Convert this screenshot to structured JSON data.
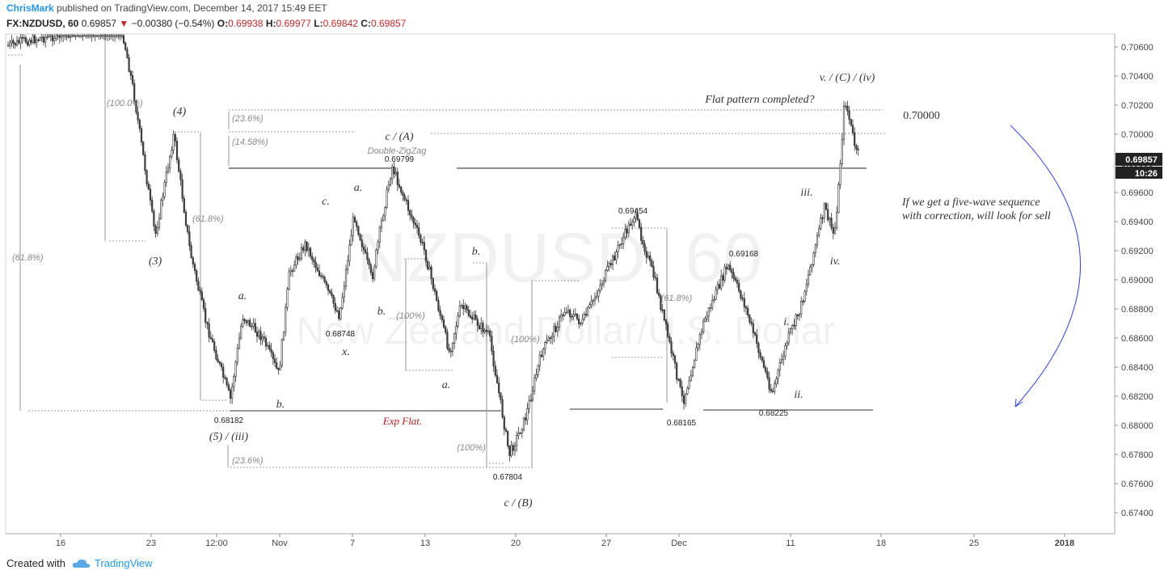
{
  "header": {
    "author": "ChrisMark",
    "published_text": " published on TradingView.com, December 14, 2017 15:49 EET",
    "symbol": "FX:NZDUSD, 60",
    "last": "0.69857",
    "arrow": "▼",
    "change": "−0.00380 (−0.54%)",
    "o_label": "O:",
    "o_val": "0.69938",
    "h_label": "H:",
    "h_val": "0.69977",
    "l_label": "L:",
    "l_val": "0.69842",
    "c_label": "C:",
    "c_val": "0.69857"
  },
  "footer": {
    "created_with": "Created with",
    "brand": "TradingView"
  },
  "colors": {
    "down": "#c62828",
    "brand": "#2196f3",
    "candle": "#333333",
    "arrow": "#3344ee",
    "price_tag": "#222222"
  },
  "price_tag": {
    "price": "0.69857",
    "countdown": "10:26"
  },
  "watermark": {
    "symbol": "NZDUSD, 60",
    "name": "New Zealand Dollar/U.S. Dollar"
  },
  "chart_data": {
    "type": "candlestick",
    "y_min": 0.674,
    "y_max": 0.7066,
    "y_ticks": [
      "0.70600",
      "0.70400",
      "0.70200",
      "0.70000",
      "0.69800",
      "0.69600",
      "0.69400",
      "0.69200",
      "0.69000",
      "0.68800",
      "0.68600",
      "0.68400",
      "0.68200",
      "0.68000",
      "0.67800",
      "0.67600",
      "0.67400"
    ],
    "x_ticks": [
      "16",
      "23",
      "12:00",
      "Nov",
      "7",
      "13",
      "20",
      "27",
      "Dec",
      "11",
      "18",
      "25",
      "2018"
    ],
    "price_path": [
      {
        "d": "Oct 10",
        "p": 0.7061
      },
      {
        "d": "Oct 11",
        "p": 0.7064
      },
      {
        "d": "Oct 19",
        "p": 0.7075
      },
      {
        "d": "Oct 20",
        "p": 0.703
      },
      {
        "d": "Oct 23",
        "p": 0.693
      },
      {
        "d": "Oct 25",
        "p": 0.7
      },
      {
        "d": "Oct 26",
        "p": 0.692
      },
      {
        "d": "Oct 27",
        "p": 0.687
      },
      {
        "d": "Oct 29",
        "p": 0.6818
      },
      {
        "d": "Oct 30",
        "p": 0.6875
      },
      {
        "d": "Oct 31",
        "p": 0.686
      },
      {
        "d": "Nov 1",
        "p": 0.6835
      },
      {
        "d": "Nov 2",
        "p": 0.6905
      },
      {
        "d": "Nov 3",
        "p": 0.6925
      },
      {
        "d": "Nov 6",
        "p": 0.6875
      },
      {
        "d": "Nov 7",
        "p": 0.6945
      },
      {
        "d": "Nov 8",
        "p": 0.69
      },
      {
        "d": "Nov 9",
        "p": 0.694
      },
      {
        "d": "Nov 10",
        "p": 0.6978
      },
      {
        "d": "Nov 13",
        "p": 0.692
      },
      {
        "d": "Nov 15",
        "p": 0.685
      },
      {
        "d": "Nov 16",
        "p": 0.6882
      },
      {
        "d": "Nov 17",
        "p": 0.6862
      },
      {
        "d": "Nov 19",
        "p": 0.678
      },
      {
        "d": "Nov 21",
        "p": 0.6805
      },
      {
        "d": "Nov 22",
        "p": 0.685
      },
      {
        "d": "Nov 24",
        "p": 0.688
      },
      {
        "d": "Nov 26",
        "p": 0.687
      },
      {
        "d": "Nov 28",
        "p": 0.6945
      },
      {
        "d": "Nov 29",
        "p": 0.69
      },
      {
        "d": "Dec 1",
        "p": 0.6816
      },
      {
        "d": "Dec 3",
        "p": 0.687
      },
      {
        "d": "Dec 5",
        "p": 0.691
      },
      {
        "d": "Dec 7",
        "p": 0.6885
      },
      {
        "d": "Dec 8",
        "p": 0.6822
      },
      {
        "d": "Dec 10",
        "p": 0.686
      },
      {
        "d": "Dec 12",
        "p": 0.688
      },
      {
        "d": "Dec 13",
        "p": 0.695
      },
      {
        "d": "Dec 14",
        "p": 0.693
      },
      {
        "d": "Dec 15",
        "p": 0.696
      },
      {
        "d": "Dec 16",
        "p": 0.7025
      },
      {
        "d": "Dec 17",
        "p": 0.6986
      }
    ],
    "labels": [
      {
        "text": "(100.0%)",
        "style": "fib"
      },
      {
        "text": "(4)",
        "style": "wave"
      },
      {
        "text": "(61.8%)",
        "style": "fib"
      },
      {
        "text": "(61.8%)",
        "style": "fib"
      },
      {
        "text": "(3)",
        "style": "wave"
      },
      {
        "text": "a.",
        "style": "wave"
      },
      {
        "text": "0.68182",
        "style": "price"
      },
      {
        "text": "(5) / (iii)",
        "style": "wave"
      },
      {
        "text": "b.",
        "style": "wave"
      },
      {
        "text": "(23.6%)",
        "style": "fib"
      },
      {
        "text": "(23.6%)",
        "style": "fib"
      },
      {
        "text": "(14.58%)",
        "style": "fib"
      },
      {
        "text": "c.",
        "style": "wave"
      },
      {
        "text": "a.",
        "style": "wave"
      },
      {
        "text": "0.68748",
        "style": "price"
      },
      {
        "text": "x.",
        "style": "wave"
      },
      {
        "text": "b.",
        "style": "wave"
      },
      {
        "text": "c / (A)",
        "style": "wave"
      },
      {
        "text": "Double-ZigZag",
        "style": "fib"
      },
      {
        "text": "0.69799",
        "style": "price"
      },
      {
        "text": "(100%)",
        "style": "fib"
      },
      {
        "text": "Exp Flat.",
        "style": "red"
      },
      {
        "text": "b.",
        "style": "wave"
      },
      {
        "text": "a.",
        "style": "wave"
      },
      {
        "text": "(100%)",
        "style": "fib"
      },
      {
        "text": "(100%)",
        "style": "fib"
      },
      {
        "text": "0.67804",
        "style": "price"
      },
      {
        "text": "c / (B)",
        "style": "wave"
      },
      {
        "text": "0.69454",
        "style": "price"
      },
      {
        "text": "(61.8%)",
        "style": "fib"
      },
      {
        "text": "0.68165",
        "style": "price"
      },
      {
        "text": "0.69168",
        "style": "price"
      },
      {
        "text": "i.",
        "style": "wave"
      },
      {
        "text": "ii.",
        "style": "wave"
      },
      {
        "text": "0.68225",
        "style": "price"
      },
      {
        "text": "iii.",
        "style": "wave"
      },
      {
        "text": "iv.",
        "style": "wave"
      },
      {
        "text": "v. / (C) / (iv)",
        "style": "wave"
      },
      {
        "text": "Flat pattern completed?",
        "style": "note"
      },
      {
        "text": "0.70000",
        "style": "note"
      },
      {
        "text": "If we get a five-wave sequence",
        "style": "note"
      },
      {
        "text": "with correction, will look for sell",
        "style": "note"
      }
    ]
  }
}
